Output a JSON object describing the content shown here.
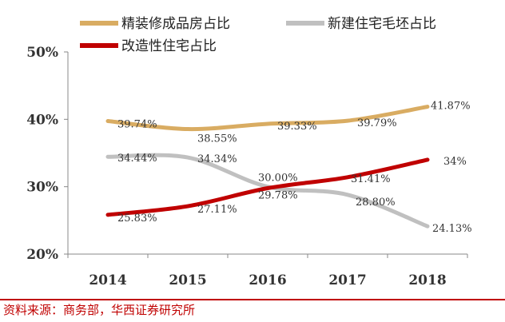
{
  "chart_data": {
    "type": "line",
    "title": "",
    "xlabel": "",
    "ylabel": "",
    "categories": [
      "2014",
      "2015",
      "2016",
      "2017",
      "2018"
    ],
    "ylim": [
      20,
      50
    ],
    "yticks": [
      20,
      30,
      40,
      50
    ],
    "ytick_labels": [
      "20%",
      "30%",
      "40%",
      "50%"
    ],
    "grid": false,
    "legend_position": "top",
    "series": [
      {
        "name": "精装修成品房占比",
        "color": "#d9ac62",
        "values": [
          39.74,
          38.55,
          39.33,
          39.79,
          41.87
        ],
        "labels": [
          "39.74%",
          "38.55%",
          "39.33%",
          "39.79%",
          "41.87%"
        ]
      },
      {
        "name": "新建住宅毛坯占比",
        "color": "#c0c0c0",
        "values": [
          34.44,
          34.34,
          30.0,
          28.8,
          24.13
        ],
        "labels": [
          "34.44%",
          "34.34%",
          "30.00%",
          "28.80%",
          "24.13%"
        ]
      },
      {
        "name": "改造性住宅占比",
        "color": "#c00000",
        "values": [
          25.83,
          27.11,
          29.78,
          31.41,
          34.0
        ],
        "labels": [
          "25.83%",
          "27.11%",
          "29.78%",
          "31.41%",
          "34%"
        ]
      }
    ]
  },
  "source": "资料来源：商务部，华西证券研究所"
}
